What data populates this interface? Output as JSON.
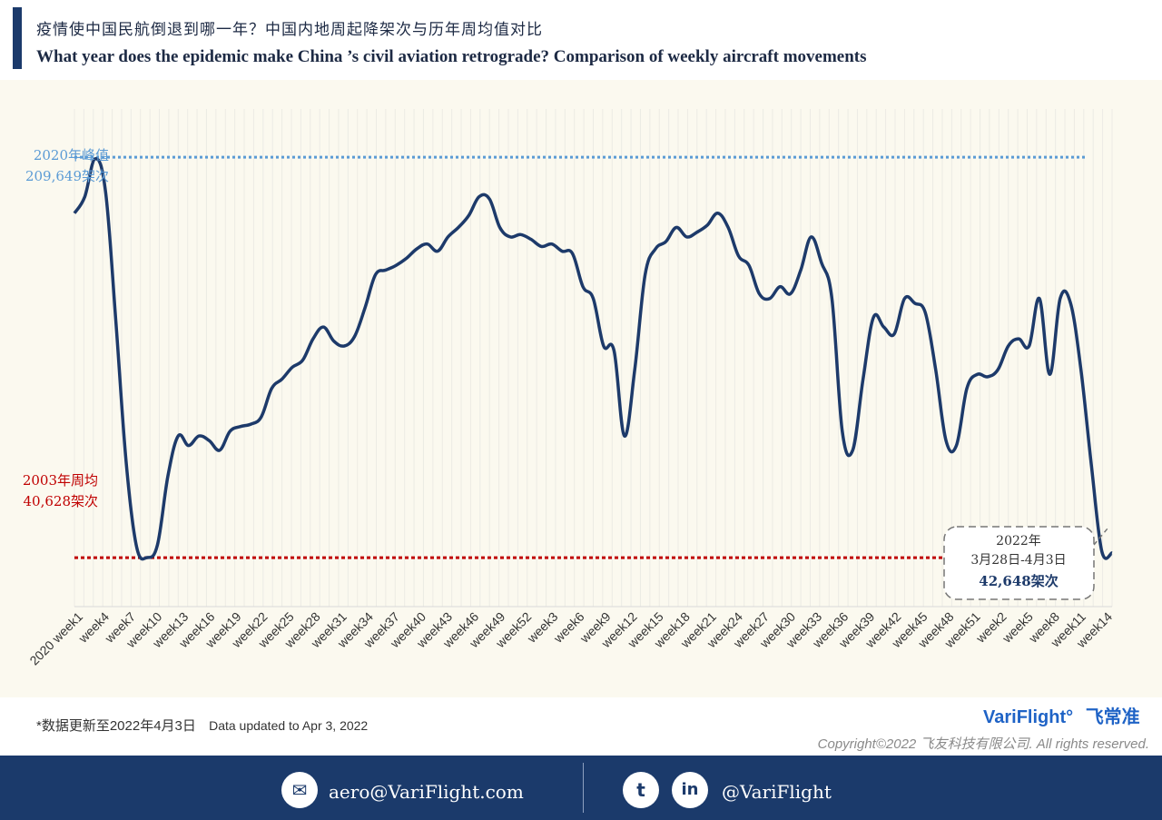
{
  "header": {
    "title_cn": "疫情使中国民航倒退到哪一年？中国内地周起降架次与历年周均值对比",
    "title_en": "What year does the epidemic make China ’s civil aviation retrograde? Comparison of weekly aircraft movements"
  },
  "colors": {
    "line": "#1d3a6a",
    "peak_ref": "#5b9bd5",
    "low_ref": "#c00000",
    "brand": "#1f63c6",
    "footer": "#1b3a6b"
  },
  "chart_data": {
    "type": "line",
    "ylim": [
      20000,
      230000
    ],
    "x_tick_labels": [
      "2020 week1",
      "week4",
      "week7",
      "week10",
      "week13",
      "week16",
      "week19",
      "week22",
      "week25",
      "week28",
      "week31",
      "week34",
      "week37",
      "week40",
      "week43",
      "week46",
      "week49",
      "week52",
      "week3",
      "week6",
      "week9",
      "week12",
      "week15",
      "week18",
      "week21",
      "week24",
      "week27",
      "week30",
      "week33",
      "week36",
      "week39",
      "week42",
      "week45",
      "week48",
      "week51",
      "week2",
      "week5",
      "week8",
      "week11",
      "week14"
    ],
    "values": [
      186000,
      193000,
      209000,
      195000,
      140000,
      80000,
      45000,
      40700,
      46000,
      75000,
      92000,
      88000,
      92000,
      90000,
      86000,
      94000,
      96000,
      97000,
      100000,
      112000,
      116000,
      121000,
      124000,
      133000,
      138000,
      132000,
      130000,
      134000,
      146000,
      160000,
      162000,
      164000,
      167000,
      171000,
      173000,
      170000,
      176000,
      180000,
      185000,
      193000,
      192000,
      180000,
      176000,
      177000,
      175000,
      172000,
      173000,
      170000,
      169000,
      155000,
      150000,
      130000,
      128000,
      92000,
      120000,
      160000,
      171000,
      174000,
      180000,
      176000,
      178000,
      181000,
      186000,
      180000,
      168000,
      164000,
      152000,
      150000,
      155000,
      152000,
      162000,
      176000,
      165000,
      150000,
      94000,
      86000,
      116000,
      142000,
      138000,
      135000,
      150000,
      148000,
      144000,
      120000,
      90000,
      88000,
      112000,
      118000,
      117000,
      120000,
      130000,
      133000,
      130000,
      150000,
      118000,
      150000,
      148000,
      120000,
      80000,
      43500,
      42648
    ],
    "reference_lines": [
      {
        "name": "2020年峰值",
        "value": 209649,
        "label_line1": "2020年峰值",
        "label_line2": "209,649架次"
      },
      {
        "name": "2003年周均",
        "value": 40628,
        "label_line1": "2003年周均",
        "label_line2": "40,628架次"
      }
    ],
    "annotation": {
      "line1": "2022年",
      "line2": "3月28日-4月3日",
      "line3": "42,648架次"
    },
    "grid": true
  },
  "footer_notes": {
    "note_cn": "*数据更新至2022年4月3日",
    "note_en": "Data updated to Apr 3, 2022",
    "brand_en": "VariFlight°",
    "brand_cn": "飞常准",
    "copyright": "Copyright©2022 飞友科技有限公司. All rights reserved."
  },
  "footer": {
    "email": "aero@VariFlight.com",
    "social_handle": "@VariFlight",
    "icon_mail": "mail-icon",
    "icon_twitter": "twitter-icon",
    "icon_linkedin": "linkedin-icon"
  }
}
